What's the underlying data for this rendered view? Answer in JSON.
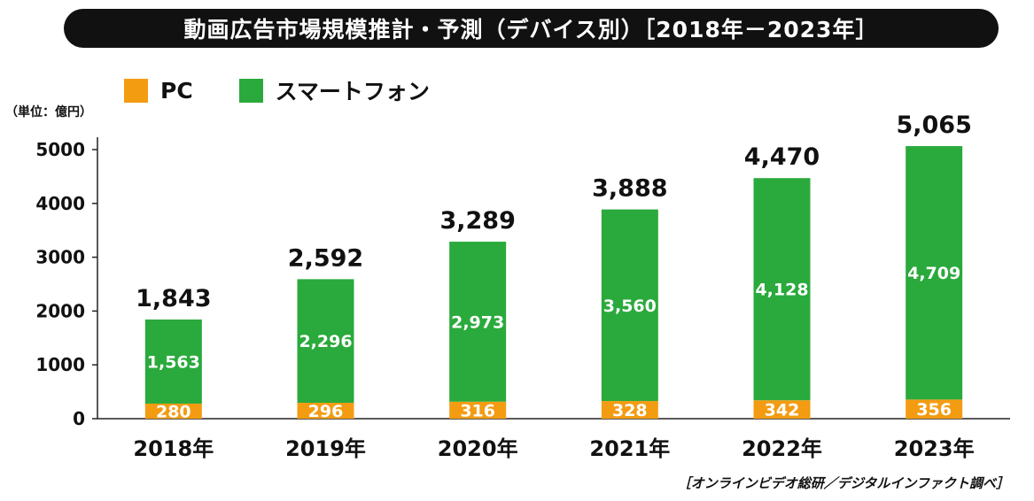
{
  "title": "動画広告市場規模推計・予測（デバイス別）［2018年－2023年］",
  "unit_label": "（単位：億円）",
  "source": "［オンラインビデオ総研／デジタルインファクト調べ］",
  "colors": {
    "pc": "#F39C12",
    "smartphone": "#2AAA3C"
  },
  "chart_data": {
    "type": "bar",
    "stacked": true,
    "title": "動画広告市場規模推計・予測（デバイス別）［2018年－2023年］",
    "unit": "（単位：億円）",
    "categories": [
      "2018年",
      "2019年",
      "2020年",
      "2021年",
      "2022年",
      "2023年"
    ],
    "series": [
      {
        "name": "PC",
        "values": [
          280,
          296,
          316,
          328,
          342,
          356
        ],
        "labels": [
          "280",
          "296",
          "316",
          "328",
          "342",
          "356"
        ]
      },
      {
        "name": "スマートフォン",
        "values": [
          1563,
          2296,
          2973,
          3560,
          4128,
          4709
        ],
        "labels": [
          "1,563",
          "2,296",
          "2,973",
          "3,560",
          "4,128",
          "4,709"
        ]
      }
    ],
    "totals": [
      1843,
      2592,
      3289,
      3888,
      4470,
      5065
    ],
    "total_labels": [
      "1,843",
      "2,592",
      "3,289",
      "3,888",
      "4,470",
      "5,065"
    ],
    "yticks": [
      0,
      1000,
      2000,
      3000,
      4000,
      5000
    ],
    "ylim": [
      0,
      5000
    ],
    "grid": false,
    "legend_position": "top-left"
  }
}
